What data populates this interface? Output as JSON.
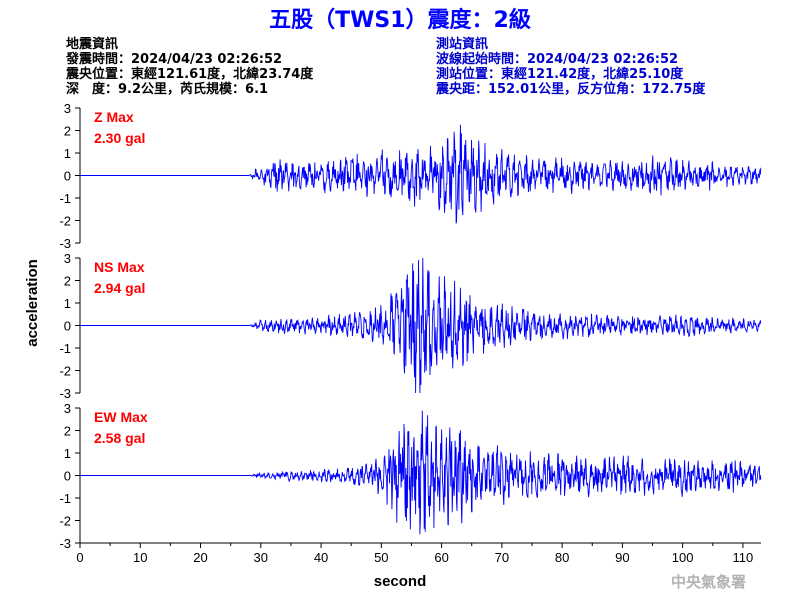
{
  "title": "五股（TWS1）震度：2級",
  "earthquake_info": {
    "heading": "地震資訊",
    "origin_time": "發震時間：2024/04/23 02:26:52",
    "epicenter": "震央位置：東經121.61度，北緯23.74度",
    "depth_magnitude": "深　度：9.2公里，芮氏規模：6.1"
  },
  "station_info": {
    "heading": "測站資訊",
    "waveform_start": "波線起始時間：2024/04/23 02:26:52",
    "station_location": "測站位置：東經121.42度，北緯25.10度",
    "distance": "震央距：152.01公里，反方位角：172.75度"
  },
  "agency": "中央氣象署",
  "colors": {
    "title": "#0000ff",
    "station_text": "#0000cc",
    "waveform": "#0000ff",
    "max_label": "#ff0000",
    "agency": "#b3b3b3"
  },
  "chart_data": {
    "type": "line",
    "xlabel": "second",
    "ylabel": "acceleration",
    "xlim": [
      0,
      113
    ],
    "x_ticks": [
      0,
      10,
      20,
      30,
      40,
      50,
      60,
      70,
      80,
      90,
      100,
      110
    ],
    "ylim": [
      -3,
      3
    ],
    "y_ticks": [
      3,
      2,
      1,
      0,
      -1,
      -2,
      -3
    ],
    "grid": false,
    "series": [
      {
        "name": "Z",
        "max_label": "Z Max",
        "max_value": "2.30 gal",
        "x": [
          0,
          14,
          28,
          29,
          30,
          31,
          32,
          33,
          34,
          35,
          36,
          38,
          40,
          42,
          44,
          46,
          48,
          50,
          52,
          54,
          55,
          56,
          57,
          58,
          59,
          60,
          61,
          62,
          63,
          64,
          65,
          66,
          67,
          68,
          70,
          72,
          74,
          76,
          78,
          80,
          84,
          88,
          92,
          96,
          100,
          104,
          108,
          112
        ],
        "y": [
          0,
          0,
          0,
          0.2,
          -0.3,
          0.4,
          -0.5,
          0.6,
          -0.5,
          0.7,
          -0.5,
          0.5,
          -0.6,
          0.6,
          -0.6,
          0.8,
          -0.7,
          0.9,
          -0.8,
          1.0,
          -1.0,
          1.2,
          -1.1,
          1.1,
          -1.0,
          1.3,
          -1.5,
          1.8,
          -2.3,
          1.5,
          -1.4,
          1.3,
          -1.2,
          1.1,
          -0.9,
          0.8,
          -0.7,
          0.6,
          -0.6,
          0.7,
          -0.5,
          0.5,
          -0.6,
          0.7,
          -0.5,
          0.5,
          -0.4,
          0.3
        ]
      },
      {
        "name": "NS",
        "max_label": "NS Max",
        "max_value": "2.94 gal",
        "x": [
          0,
          14,
          28,
          30,
          32,
          34,
          36,
          38,
          40,
          42,
          44,
          46,
          48,
          50,
          51,
          52,
          53,
          54,
          55,
          56,
          57,
          58,
          59,
          60,
          61,
          62,
          63,
          64,
          65,
          66,
          68,
          70,
          72,
          76,
          80,
          84,
          88,
          92,
          96,
          100,
          104,
          108,
          112
        ],
        "y": [
          0,
          0,
          0,
          0.2,
          -0.2,
          0.3,
          -0.3,
          0.3,
          -0.3,
          0.4,
          -0.4,
          0.5,
          -0.5,
          0.8,
          -1.0,
          1.3,
          -1.6,
          2.0,
          -2.4,
          2.6,
          -2.9,
          2.2,
          -2.0,
          1.8,
          -1.9,
          1.6,
          -1.5,
          1.4,
          -1.2,
          1.0,
          -0.9,
          0.8,
          -0.7,
          0.5,
          -0.5,
          0.4,
          -0.4,
          0.4,
          -0.3,
          0.4,
          -0.3,
          0.3,
          -0.2
        ]
      },
      {
        "name": "EW",
        "max_label": "EW Max",
        "max_value": "2.58 gal",
        "x": [
          0,
          14,
          28,
          30,
          32,
          34,
          36,
          38,
          40,
          42,
          44,
          46,
          48,
          50,
          51,
          52,
          53,
          54,
          55,
          56,
          57,
          58,
          59,
          60,
          61,
          62,
          63,
          64,
          65,
          66,
          68,
          70,
          72,
          76,
          80,
          84,
          88,
          92,
          96,
          100,
          104,
          108,
          112
        ],
        "y": [
          0,
          0,
          0,
          0.1,
          -0.1,
          0.2,
          -0.2,
          0.2,
          -0.2,
          0.3,
          -0.3,
          0.4,
          -0.4,
          0.7,
          -1.0,
          1.4,
          -1.8,
          2.0,
          -2.2,
          1.8,
          -2.6,
          2.0,
          -1.9,
          1.6,
          -1.8,
          2.0,
          -1.7,
          1.5,
          -1.3,
          1.2,
          -1.0,
          1.1,
          -0.9,
          0.8,
          -0.7,
          0.8,
          -0.6,
          0.7,
          -0.6,
          0.7,
          -0.5,
          0.6,
          -0.4
        ]
      }
    ]
  }
}
